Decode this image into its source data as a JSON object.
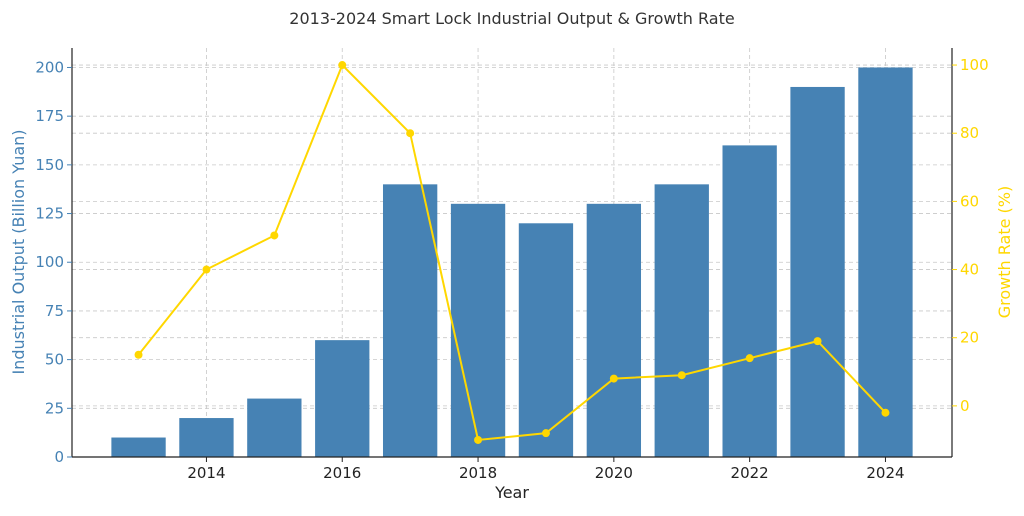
{
  "chart_data": {
    "type": "bar",
    "title": "2013-2024 Smart Lock Industrial Output & Growth Rate",
    "xlabel": "Year",
    "ylabel": "Industrial Output (Billion Yuan)",
    "y2label": "Growth Rate (%)",
    "categories": [
      2013,
      2014,
      2015,
      2016,
      2017,
      2018,
      2019,
      2020,
      2021,
      2022,
      2023,
      2024
    ],
    "x_ticks": [
      2014,
      2016,
      2018,
      2020,
      2022,
      2024
    ],
    "y_ticks": [
      0,
      25,
      50,
      75,
      100,
      125,
      150,
      175,
      200
    ],
    "y2_ticks": [
      0,
      20,
      40,
      60,
      80,
      100
    ],
    "ylim": [
      0,
      210
    ],
    "y2lim": [
      -15,
      105
    ],
    "grid": true,
    "series": [
      {
        "type": "bar",
        "axis": "left",
        "color": "#4682b4",
        "values": [
          10,
          20,
          30,
          60,
          140,
          130,
          120,
          130,
          140,
          160,
          190,
          200
        ]
      },
      {
        "type": "line",
        "axis": "right",
        "color": "#ffd700",
        "values": [
          15,
          40,
          50,
          100,
          80,
          -10,
          -8,
          8,
          9,
          14,
          19,
          -2
        ]
      }
    ]
  }
}
